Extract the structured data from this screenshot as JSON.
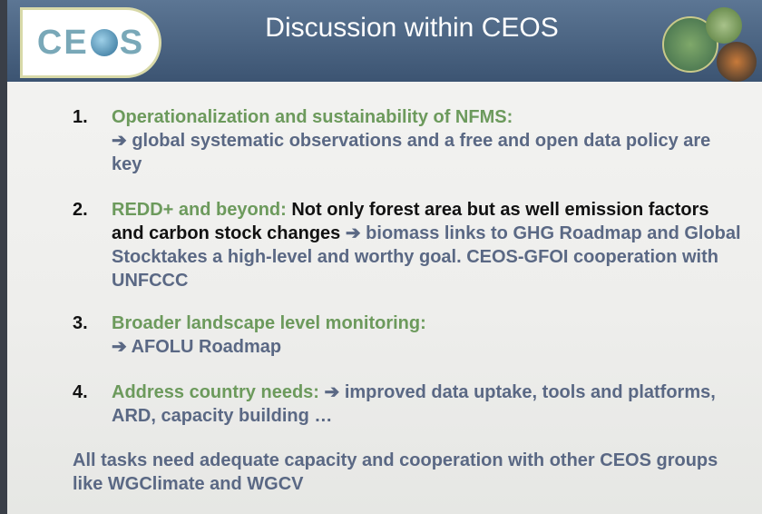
{
  "header": {
    "logo": {
      "prefix": "CE",
      "suffix": "S"
    },
    "title": "Discussion within CEOS"
  },
  "items": [
    {
      "number": "1.",
      "heading": "Operationalization and sustainability of NFMS:",
      "body": "➔ global systematic observations and a free and open data policy are key"
    },
    {
      "number": "2.",
      "heading": "REDD+ and beyond:",
      "detail": "Not only forest area but as well emission factors and carbon stock changes",
      "body": "➔ biomass links to GHG Roadmap and Global Stocktakes a high-level and worthy goal. CEOS-GFOI cooperation with UNFCCC"
    },
    {
      "number": "3.",
      "heading": "Broader landscape level monitoring:",
      "body": "➔ AFOLU Roadmap"
    },
    {
      "number": "4.",
      "heading": "Address country needs:",
      "body": "➔ improved data uptake, tools and platforms, ARD, capacity building …"
    }
  ],
  "footer": "All tasks need adequate capacity and cooperation with other CEOS groups like WGClimate and WGCV"
}
